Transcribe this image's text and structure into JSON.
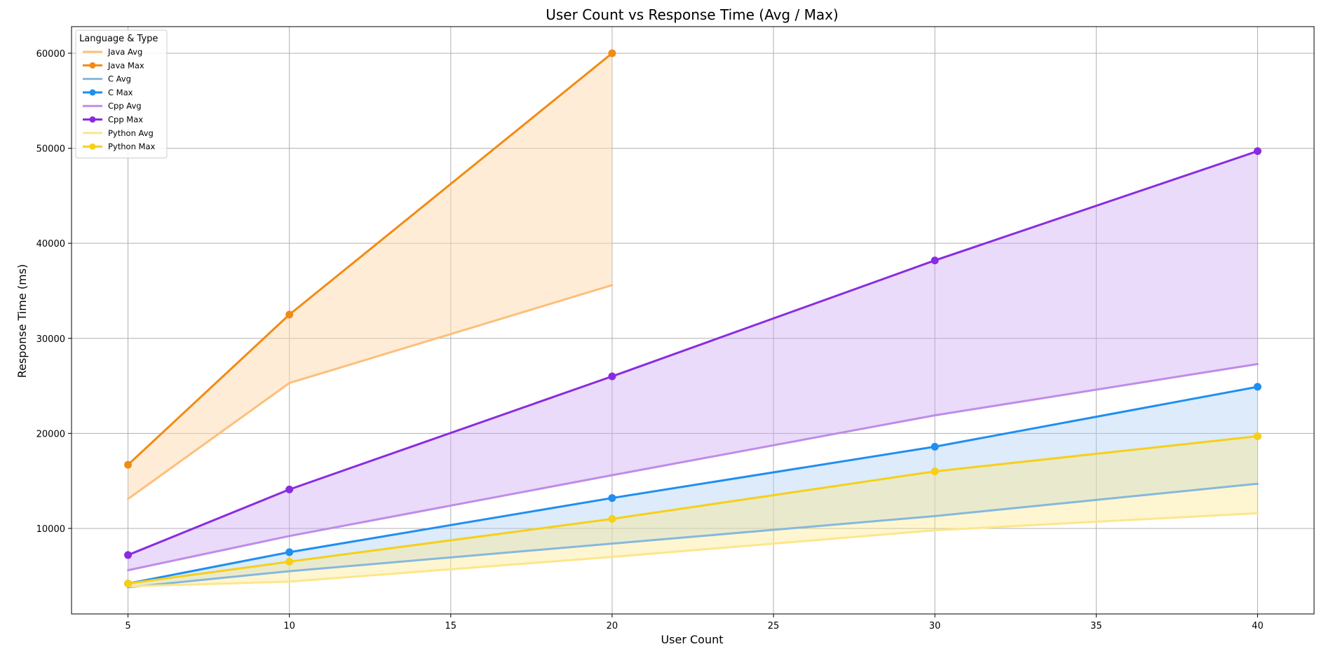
{
  "chart_data": {
    "type": "line",
    "title": "User Count vs Response Time (Avg / Max)",
    "xlabel": "User Count",
    "ylabel": "Response Time (ms)",
    "xlim": [
      3.25,
      41.75
    ],
    "ylim": [
      1000,
      62800
    ],
    "xticks": [
      5,
      10,
      15,
      20,
      25,
      30,
      35,
      40
    ],
    "yticks": [
      10000,
      20000,
      30000,
      40000,
      50000,
      60000
    ],
    "grid": true,
    "legend": {
      "title": "Language & Type",
      "placement": "top-left",
      "entries": [
        "Java Avg",
        "Java Max",
        "C Avg",
        "C Max",
        "Cpp Avg",
        "Cpp Max",
        "Python Avg",
        "Python Max"
      ]
    },
    "series": [
      {
        "name": "Java Avg",
        "x": [
          5,
          10,
          20
        ],
        "values": [
          13100,
          25300,
          35600
        ],
        "color": "#fdbf7a",
        "markers": false
      },
      {
        "name": "Java Max",
        "x": [
          5,
          10,
          20
        ],
        "values": [
          16700,
          32500,
          60000
        ],
        "color": "#f28b13",
        "markers": true
      },
      {
        "name": "C Avg",
        "x": [
          5,
          10,
          20,
          30,
          40
        ],
        "values": [
          3800,
          5500,
          8400,
          11300,
          14700
        ],
        "color": "#86b8dc",
        "markers": false
      },
      {
        "name": "C Max",
        "x": [
          5,
          10,
          20,
          30,
          40
        ],
        "values": [
          4200,
          7500,
          13200,
          18600,
          24900
        ],
        "color": "#1f8ef1",
        "markers": true
      },
      {
        "name": "Cpp Avg",
        "x": [
          5,
          10,
          20,
          30,
          40
        ],
        "values": [
          5600,
          9200,
          15600,
          21900,
          27300
        ],
        "color": "#bf8ce9",
        "markers": false
      },
      {
        "name": "Cpp Max",
        "x": [
          5,
          10,
          20,
          30,
          40
        ],
        "values": [
          7200,
          14100,
          26000,
          38200,
          49700
        ],
        "color": "#8a2be2",
        "markers": true
      },
      {
        "name": "Python Avg",
        "x": [
          5,
          10,
          20,
          30,
          40
        ],
        "values": [
          3900,
          4400,
          7000,
          9800,
          11600
        ],
        "color": "#fde68a",
        "markers": false
      },
      {
        "name": "Python Max",
        "x": [
          5,
          10,
          20,
          30,
          40
        ],
        "values": [
          4200,
          6500,
          11000,
          16000,
          19700
        ],
        "color": "#f7cf17",
        "markers": true
      }
    ],
    "bands": [
      {
        "lower": "Java Avg",
        "upper": "Java Max",
        "color": "#fdd9b0",
        "opacity": 0.5
      },
      {
        "lower": "C Avg",
        "upper": "C Max",
        "color": "#a9cdf5",
        "opacity": 0.4
      },
      {
        "lower": "Cpp Avg",
        "upper": "Cpp Max",
        "color": "#c9a4ef",
        "opacity": 0.4
      },
      {
        "lower": "Python Avg",
        "upper": "Python Max",
        "color": "#fde98a",
        "opacity": 0.4
      }
    ]
  }
}
